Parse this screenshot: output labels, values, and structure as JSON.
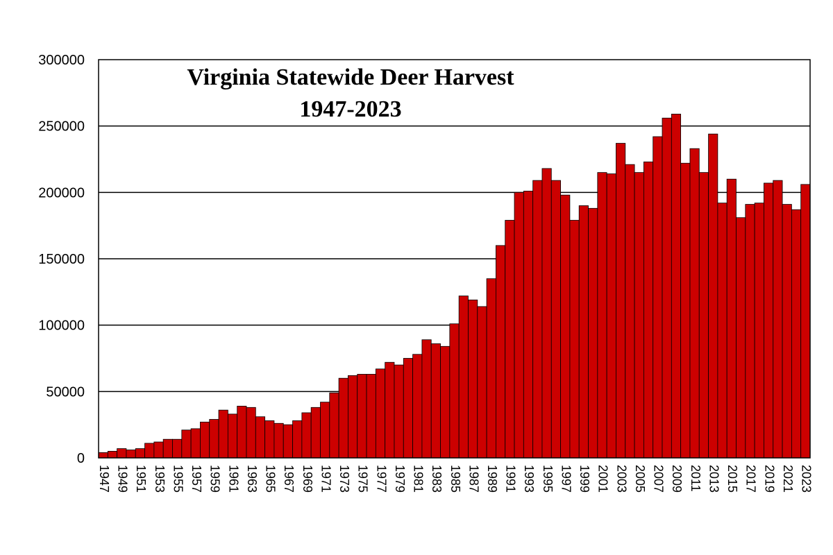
{
  "chart_data": {
    "type": "bar",
    "title": "Virginia Statewide Deer Harvest",
    "subtitle": "1947-2023",
    "xlabel": "",
    "ylabel": "",
    "ylim": [
      0,
      300000
    ],
    "yticks": [
      0,
      50000,
      100000,
      150000,
      200000,
      250000,
      300000
    ],
    "grid": true,
    "bar_color": "#cc0000",
    "categories": [
      "1947",
      "1948",
      "1949",
      "1950",
      "1951",
      "1952",
      "1953",
      "1954",
      "1955",
      "1956",
      "1957",
      "1958",
      "1959",
      "1960",
      "1961",
      "1962",
      "1963",
      "1964",
      "1965",
      "1966",
      "1967",
      "1968",
      "1969",
      "1970",
      "1971",
      "1972",
      "1973",
      "1974",
      "1975",
      "1976",
      "1977",
      "1978",
      "1979",
      "1980",
      "1981",
      "1982",
      "1983",
      "1984",
      "1985",
      "1986",
      "1987",
      "1988",
      "1989",
      "1990",
      "1991",
      "1992",
      "1993",
      "1994",
      "1995",
      "1996",
      "1997",
      "1998",
      "1999",
      "2000",
      "2001",
      "2002",
      "2003",
      "2004",
      "2005",
      "2006",
      "2007",
      "2008",
      "2009",
      "2010",
      "2011",
      "2012",
      "2013",
      "2014",
      "2015",
      "2016",
      "2017",
      "2018",
      "2019",
      "2020",
      "2021",
      "2022",
      "2023"
    ],
    "values": [
      4000,
      5000,
      7000,
      6000,
      7000,
      11000,
      12000,
      14000,
      14000,
      21000,
      22000,
      27000,
      29000,
      36000,
      33000,
      39000,
      38000,
      31000,
      28000,
      26000,
      25000,
      28000,
      34000,
      38000,
      42000,
      49000,
      60000,
      62000,
      63000,
      63000,
      67000,
      72000,
      70000,
      75000,
      78000,
      89000,
      86000,
      84000,
      101000,
      122000,
      119000,
      114000,
      135000,
      160000,
      179000,
      200000,
      201000,
      209000,
      218000,
      209000,
      198000,
      179000,
      190000,
      188000,
      215000,
      214000,
      237000,
      221000,
      215000,
      223000,
      242000,
      256000,
      259000,
      222000,
      233000,
      215000,
      244000,
      192000,
      210000,
      181000,
      191000,
      192000,
      207000,
      209000,
      191000,
      187000,
      206000
    ],
    "xtick_labels": [
      "1947",
      "1949",
      "1951",
      "1953",
      "1955",
      "1957",
      "1959",
      "1961",
      "1963",
      "1965",
      "1967",
      "1969",
      "1971",
      "1973",
      "1975",
      "1977",
      "1979",
      "1981",
      "1983",
      "1985",
      "1987",
      "1989",
      "1991",
      "1993",
      "1995",
      "1997",
      "1999",
      "2001",
      "2003",
      "2005",
      "2007",
      "2009",
      "2011",
      "2013",
      "2015",
      "2017",
      "2019",
      "2021",
      "2023"
    ]
  }
}
